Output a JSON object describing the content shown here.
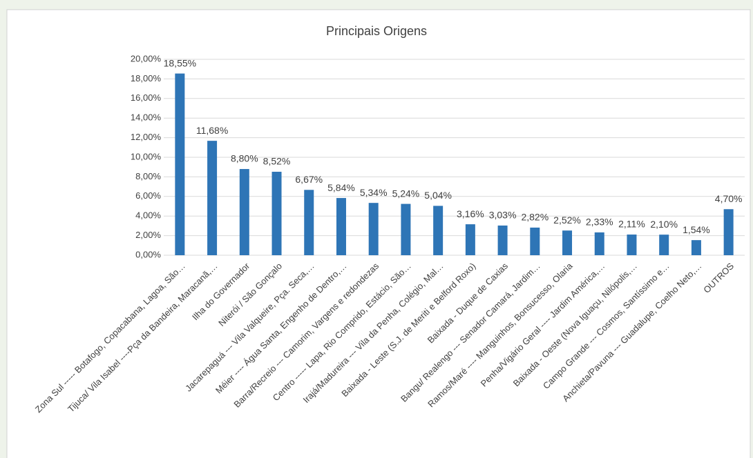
{
  "chart_data": {
    "type": "bar",
    "title": "Principais Origens",
    "categories": [
      "Zona Sul ----- Botafogo, Copacabana, Lagoa, São…",
      "Tijuca/ Vila Isabel ----Pça da Bandeira, Maracanã,…",
      "Ilha do Governador",
      "Niterói / São Gonçalo",
      "Jacarepaguá --- Vila Valqueire, Pça. Seca,…",
      "Méier ---- Água Santa, Engenho de Dentro,…",
      "Barra/Recreio --- Camorim, Vargens e redondezas",
      "Centro ----- Lapa, Rio Comprido, Estácio, São…",
      "Irajá/Madureira --- Vila da Penha, Colégio, Mal…",
      "Baixada - Leste (S.J. de Meriti e Belford Roxo)",
      "Baixada - Duque de Caxias",
      "Bangu/ Realengo --- Senador Camará, Jardim…",
      "Ramos/Maré ---- Manguinhos, Bonsucesso, Olaria",
      "Penha/Vigário Geral ---- Jardim América,…",
      "Baixada - Oeste (Nova Iguaçu, Nilópolis,…",
      "Campo Grande --- Cosmos, Santíssimo e…",
      "Anchieta/Pavuna --- Guadalupe, Coelho Neto,…",
      "OUTROS"
    ],
    "values": [
      18.55,
      11.68,
      8.8,
      8.52,
      6.67,
      5.84,
      5.34,
      5.24,
      5.04,
      3.16,
      3.03,
      2.82,
      2.52,
      2.33,
      2.11,
      2.1,
      1.54,
      4.7
    ],
    "value_labels": [
      "18,55%",
      "11,68%",
      "8,80%",
      "8,52%",
      "6,67%",
      "5,84%",
      "5,34%",
      "5,24%",
      "5,04%",
      "3,16%",
      "3,03%",
      "2,82%",
      "2,52%",
      "2,33%",
      "2,11%",
      "2,10%",
      "1,54%",
      "4,70%"
    ],
    "color": "#2e75b6",
    "ylim": [
      0,
      20
    ],
    "yticks": [
      {
        "value": 0,
        "label": "0,00%"
      },
      {
        "value": 2,
        "label": "2,00%"
      },
      {
        "value": 4,
        "label": "4,00%"
      },
      {
        "value": 6,
        "label": "6,00%"
      },
      {
        "value": 8,
        "label": "8,00%"
      },
      {
        "value": 10,
        "label": "10,00%"
      },
      {
        "value": 12,
        "label": "12,00%"
      },
      {
        "value": 14,
        "label": "14,00%"
      },
      {
        "value": 16,
        "label": "16,00%"
      },
      {
        "value": 18,
        "label": "18,00%"
      },
      {
        "value": 20,
        "label": "20,00%"
      }
    ],
    "grid": true
  }
}
